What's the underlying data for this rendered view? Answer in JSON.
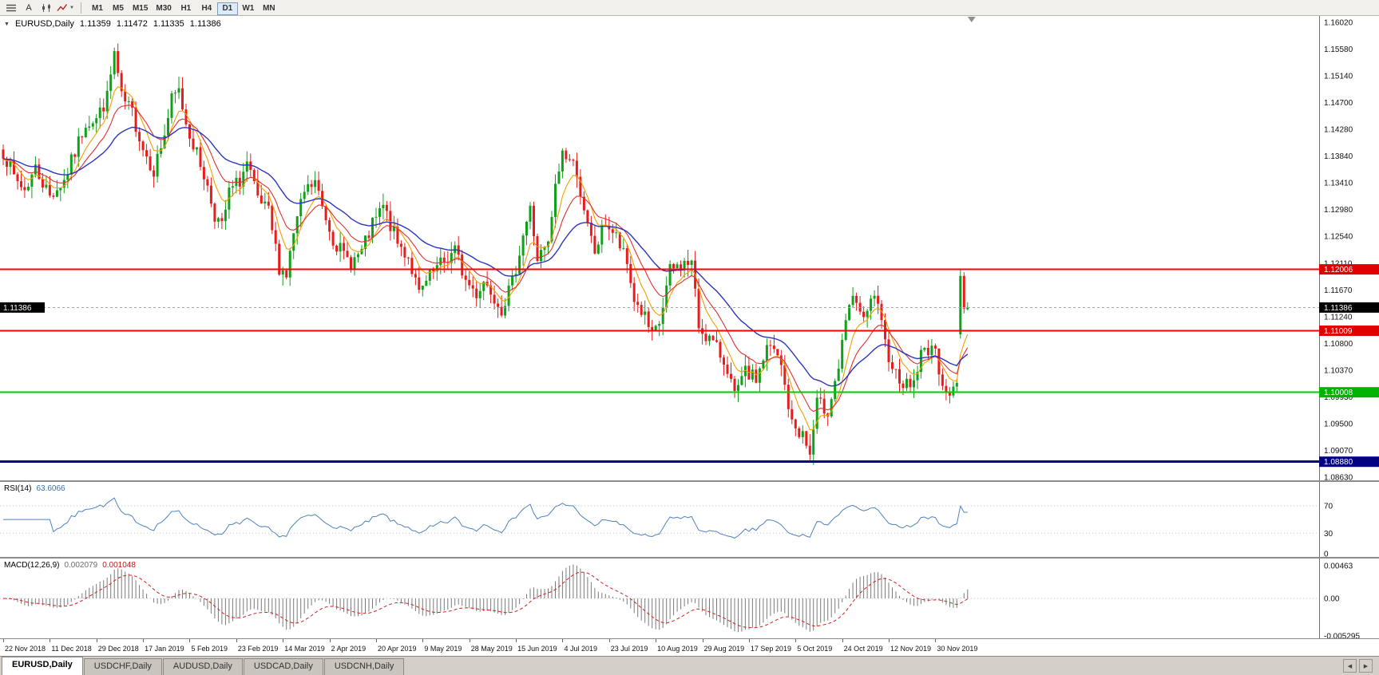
{
  "toolbar": {
    "text_tool_label": "A",
    "timeframes": [
      "M1",
      "M5",
      "M15",
      "M30",
      "H1",
      "H4",
      "D1",
      "W1",
      "MN"
    ],
    "active_timeframe": "D1"
  },
  "chart_header": {
    "title": "EURUSD,Daily",
    "quote": {
      "open": "1.11359",
      "high": "1.11472",
      "low": "1.11335",
      "close": "1.11386"
    }
  },
  "rsi_header": {
    "name": "RSI(14)",
    "value": "63.6066"
  },
  "macd_header": {
    "name": "MACD(12,26,9)",
    "main_value": "0.002079",
    "signal_value": "0.001048"
  },
  "tabs": [
    {
      "label": "EURUSD,Daily",
      "active": true
    },
    {
      "label": "USDCHF,Daily",
      "active": false
    },
    {
      "label": "AUDUSD,Daily",
      "active": false
    },
    {
      "label": "USDCAD,Daily",
      "active": false
    },
    {
      "label": "USDCNH,Daily",
      "active": false
    }
  ],
  "chart_data": {
    "type": "candlestick",
    "symbol": "EURUSD",
    "period": "Daily",
    "candle_count": 270,
    "visible_price_range": [
      1.0863,
      1.1602
    ],
    "y_tick_labels": [
      "1.16020",
      "1.15580",
      "1.15140",
      "1.14700",
      "1.14280",
      "1.13840",
      "1.13410",
      "1.12980",
      "1.12540",
      "1.12110",
      "1.11670",
      "1.11240",
      "1.10800",
      "1.10370",
      "1.09930",
      "1.09500",
      "1.09070",
      "1.08630"
    ],
    "x_tick_labels": [
      "22 Nov 2018",
      "11 Dec 2018",
      "29 Dec 2018",
      "17 Jan 2019",
      "5 Feb 2019",
      "23 Feb 2019",
      "14 Mar 2019",
      "2 Apr 2019",
      "20 Apr 2019",
      "9 May 2019",
      "28 May 2019",
      "15 Jun 2019",
      "4 Jul 2019",
      "23 Jul 2019",
      "10 Aug 2019",
      "29 Aug 2019",
      "17 Sep 2019",
      "5 Oct 2019",
      "24 Oct 2019",
      "12 Nov 2019",
      "30 Nov 2019"
    ],
    "quote": {
      "open": 1.11359,
      "high": 1.11472,
      "low": 1.11335,
      "close": 1.11386
    },
    "levels": [
      {
        "value": 1.12006,
        "label": "1.12006",
        "line_color": "#ff0000",
        "tag_color": "#e00000",
        "width": 2,
        "style": "solid",
        "role": "resistance-line"
      },
      {
        "value": 1.11386,
        "label": "1.11386",
        "line_color": "#a8a8a8",
        "tag_color": "#000000",
        "width": 1,
        "style": "dotted",
        "role": "current-price-line",
        "left_tag": true
      },
      {
        "value": 1.11009,
        "label": "1.11009",
        "line_color": "#ff0000",
        "tag_color": "#e00000",
        "width": 2,
        "style": "solid",
        "role": "resistance-line"
      },
      {
        "value": 1.10008,
        "label": "1.10008",
        "line_color": "#00cc00",
        "tag_color": "#00b300",
        "width": 2,
        "style": "solid",
        "role": "support-line"
      },
      {
        "value": 1.0888,
        "label": "1.08880",
        "line_color": "#000080",
        "tag_color": "#000080",
        "width": 3,
        "style": "solid",
        "role": "support-line"
      }
    ],
    "indicators": {
      "rsi": {
        "period": 14,
        "current": 63.6066,
        "levels": [
          "70",
          "30",
          "0"
        ],
        "line_color": "#4f81bd"
      },
      "macd": {
        "fast": 12,
        "slow": 26,
        "signal": 9,
        "current_main": 0.002079,
        "current_signal": 0.001048,
        "levels": [
          "0.00463",
          "0.00",
          "-0.005295"
        ],
        "hist_color": "#7a7a7a",
        "signal_color": "#d02020"
      },
      "moving_averages": [
        {
          "name": "fast-ma",
          "color": "#f0a000"
        },
        {
          "name": "mid-ma",
          "color": "#e03030"
        },
        {
          "name": "slow-ma",
          "color": "#2b35c0"
        }
      ]
    },
    "colors": {
      "bull": "#11a01c",
      "bear": "#e81c1c",
      "background": "#ffffff",
      "axis_text": "#111111"
    },
    "anchors_note": "approximate closes read off the chart as [candle_index, close] pairs",
    "anchors": [
      [
        0,
        1.1393
      ],
      [
        3,
        1.135
      ],
      [
        6,
        1.133
      ],
      [
        9,
        1.1365
      ],
      [
        13,
        1.132
      ],
      [
        17,
        1.1345
      ],
      [
        20,
        1.139
      ],
      [
        23,
        1.144
      ],
      [
        26,
        1.1445
      ],
      [
        29,
        1.148
      ],
      [
        31,
        1.1552
      ],
      [
        33,
        1.1478
      ],
      [
        36,
        1.1455
      ],
      [
        39,
        1.1398
      ],
      [
        42,
        1.1362
      ],
      [
        45,
        1.142
      ],
      [
        47,
        1.1475
      ],
      [
        49,
        1.149
      ],
      [
        51,
        1.144
      ],
      [
        53,
        1.1405
      ],
      [
        56,
        1.1355
      ],
      [
        59,
        1.129
      ],
      [
        61,
        1.1268
      ],
      [
        63,
        1.1325
      ],
      [
        66,
        1.1345
      ],
      [
        68,
        1.1372
      ],
      [
        71,
        1.1312
      ],
      [
        74,
        1.1292
      ],
      [
        77,
        1.1205
      ],
      [
        79,
        1.1192
      ],
      [
        81,
        1.1258
      ],
      [
        84,
        1.1325
      ],
      [
        87,
        1.1342
      ],
      [
        89,
        1.1302
      ],
      [
        92,
        1.1252
      ],
      [
        95,
        1.1222
      ],
      [
        97,
        1.1212
      ],
      [
        100,
        1.1228
      ],
      [
        103,
        1.1272
      ],
      [
        106,
        1.1302
      ],
      [
        108,
        1.1272
      ],
      [
        110,
        1.1242
      ],
      [
        113,
        1.1222
      ],
      [
        116,
        1.1158
      ],
      [
        119,
        1.1188
      ],
      [
        122,
        1.1208
      ],
      [
        124,
        1.1218
      ],
      [
        126,
        1.1232
      ],
      [
        129,
        1.1182
      ],
      [
        132,
        1.1162
      ],
      [
        134,
        1.1182
      ],
      [
        136,
        1.1168
      ],
      [
        139,
        1.1138
      ],
      [
        142,
        1.1178
      ],
      [
        145,
        1.1258
      ],
      [
        147,
        1.1298
      ],
      [
        149,
        1.1218
      ],
      [
        152,
        1.1238
      ],
      [
        154,
        1.1332
      ],
      [
        156,
        1.1392
      ],
      [
        158,
        1.1378
      ],
      [
        160,
        1.1362
      ],
      [
        162,
        1.1288
      ],
      [
        165,
        1.1228
      ],
      [
        168,
        1.1278
      ],
      [
        171,
        1.1252
      ],
      [
        174,
        1.1208
      ],
      [
        176,
        1.1152
      ],
      [
        179,
        1.1122
      ],
      [
        181,
        1.1088
      ],
      [
        183,
        1.1112
      ],
      [
        186,
        1.1198
      ],
      [
        189,
        1.1208
      ],
      [
        192,
        1.1212
      ],
      [
        194,
        1.1108
      ],
      [
        197,
        1.1088
      ],
      [
        200,
        1.1062
      ],
      [
        202,
        1.1042
      ],
      [
        204,
        1.0992
      ],
      [
        207,
        1.1032
      ],
      [
        210,
        1.1022
      ],
      [
        213,
        1.1072
      ],
      [
        215,
        1.1068
      ],
      [
        217,
        1.1042
      ],
      [
        220,
        1.0948
      ],
      [
        223,
        1.0932
      ],
      [
        225,
        1.0898
      ],
      [
        227,
        1.0982
      ],
      [
        230,
        1.0972
      ],
      [
        233,
        1.1042
      ],
      [
        236,
        1.1142
      ],
      [
        238,
        1.1152
      ],
      [
        240,
        1.1112
      ],
      [
        243,
        1.1162
      ],
      [
        246,
        1.1078
      ],
      [
        249,
        1.1032
      ],
      [
        252,
        1.1012
      ],
      [
        254,
        1.1018
      ],
      [
        256,
        1.1062
      ],
      [
        259,
        1.1078
      ],
      [
        262,
        1.1022
      ],
      [
        264,
        1.0988
      ],
      [
        266,
        1.1022
      ]
    ],
    "recent_candles": [
      {
        "o": 1.1095,
        "h": 1.1201,
        "l": 1.1088,
        "c": 1.119
      },
      {
        "o": 1.119,
        "h": 1.1196,
        "l": 1.1129,
        "c": 1.1137
      },
      {
        "o": 1.11359,
        "h": 1.11472,
        "l": 1.11335,
        "c": 1.11386
      }
    ]
  }
}
